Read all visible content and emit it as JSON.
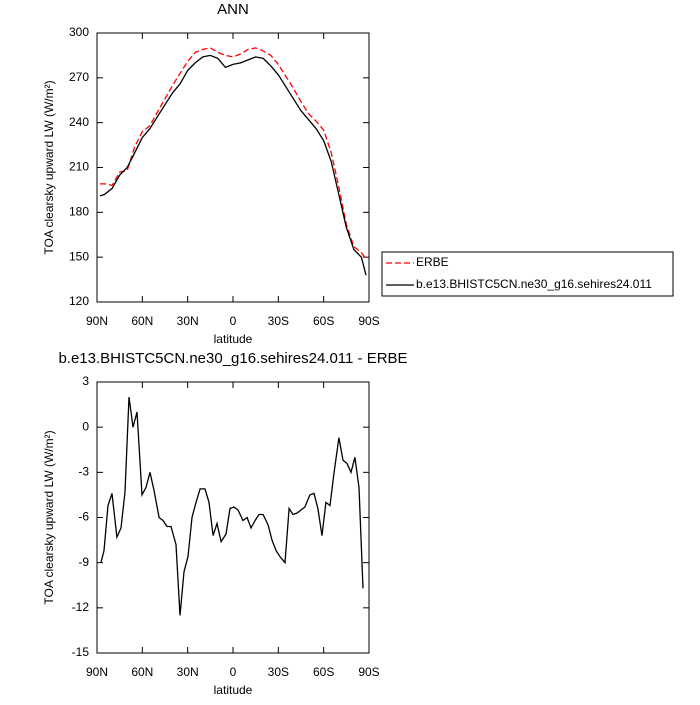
{
  "chart_data": [
    {
      "type": "line",
      "title": "ANN",
      "x_label": "latitude",
      "y_label": "TOA clearsky upward LW (W/m²)",
      "x": [
        88,
        85,
        80,
        75,
        70,
        65,
        60,
        55,
        50,
        45,
        40,
        35,
        30,
        25,
        20,
        15,
        10,
        5,
        0,
        -5,
        -10,
        -15,
        -20,
        -25,
        -30,
        -35,
        -40,
        -45,
        -50,
        -55,
        -60,
        -65,
        -70,
        -75,
        -80,
        -85,
        -88
      ],
      "xlim": [
        90,
        -90
      ],
      "xticks": [
        {
          "value": 90,
          "label": "90N"
        },
        {
          "value": 60,
          "label": "60N"
        },
        {
          "value": 30,
          "label": "30N"
        },
        0,
        {
          "value": -30,
          "label": "30S"
        },
        {
          "value": -60,
          "label": "60S"
        },
        {
          "value": -90,
          "label": "90S"
        }
      ],
      "ylim": [
        120,
        300
      ],
      "yticks": [
        120,
        150,
        180,
        210,
        240,
        270,
        300
      ],
      "legend": "right",
      "series": [
        {
          "name": "ERBE",
          "color": "#ff0000",
          "dashed": true,
          "values": [
            199,
            199,
            198,
            207,
            208,
            224,
            234,
            238,
            247,
            256,
            265,
            273,
            281,
            287,
            289,
            290,
            287,
            285,
            284,
            286,
            289,
            290,
            288,
            285,
            279,
            271,
            263,
            254,
            246,
            241,
            235,
            220,
            197,
            172,
            157,
            153,
            149
          ]
        },
        {
          "name": "b.e13.BHISTC5CN.ne30_g16.sehires24.011",
          "color": "#000000",
          "dashed": false,
          "values": [
            191,
            192,
            196,
            205,
            210,
            220,
            230,
            236,
            244,
            252,
            260,
            266,
            275,
            280,
            284,
            285,
            283,
            277,
            279,
            280,
            282,
            284,
            283,
            278,
            272,
            264,
            256,
            248,
            242,
            236,
            228,
            214,
            192,
            170,
            155,
            150,
            138
          ]
        }
      ]
    },
    {
      "type": "line",
      "title": "b.e13.BHISTC5CN.ne30_g16.sehires24.011 - ERBE",
      "x_label": "latitude",
      "y_label": "TOA clearsky upward LW (W/m²)",
      "x": [
        87.4,
        85.4,
        82.7,
        80.1,
        76.8,
        74.1,
        71.5,
        68.8,
        66.2,
        63.5,
        60.2,
        57.6,
        54.9,
        52.3,
        48.9,
        46.3,
        43.7,
        41.0,
        37.7,
        35.1,
        32.4,
        29.8,
        27.1,
        24.5,
        21.8,
        18.5,
        15.9,
        13.2,
        10.6,
        7.9,
        4.6,
        2.0,
        -0.6,
        -3.3,
        -6.6,
        -9.3,
        -11.9,
        -14.6,
        -17.2,
        -19.9,
        -23.2,
        -25.8,
        -28.5,
        -31.1,
        -34.4,
        -37.1,
        -39.7,
        -42.4,
        -45.0,
        -47.6,
        -50.9,
        -53.6,
        -56.2,
        -58.9,
        -61.5,
        -64.2,
        -66.8,
        -70.1,
        -72.8,
        -75.4,
        -78.1,
        -80.7,
        -83.4,
        -86.0
      ],
      "xlim": [
        90,
        -90
      ],
      "xticks": [
        {
          "value": 90,
          "label": "90N"
        },
        {
          "value": 60,
          "label": "60N"
        },
        {
          "value": 30,
          "label": "30N"
        },
        0,
        {
          "value": -30,
          "label": "30S"
        },
        {
          "value": -60,
          "label": "60S"
        },
        {
          "value": -90,
          "label": "90S"
        }
      ],
      "ylim": [
        -15,
        3
      ],
      "yticks": [
        -15,
        -12,
        -9,
        -6,
        -3,
        0,
        3
      ],
      "color": "#000000",
      "values": [
        -9.0,
        -8.2,
        -5.2,
        -4.4,
        -7.3,
        -6.7,
        -4.3,
        2.0,
        0.0,
        1.0,
        -4.5,
        -4.0,
        -3.0,
        -4.2,
        -6.0,
        -6.2,
        -6.6,
        -6.6,
        -7.8,
        -12.5,
        -9.6,
        -8.6,
        -6.0,
        -5.0,
        -4.1,
        -4.1,
        -5.0,
        -7.2,
        -6.4,
        -7.6,
        -7.1,
        -5.4,
        -5.3,
        -5.5,
        -6.2,
        -6.0,
        -6.7,
        -6.2,
        -5.8,
        -5.8,
        -6.5,
        -7.5,
        -8.2,
        -8.6,
        -9.0,
        -5.4,
        -5.8,
        -5.7,
        -5.5,
        -5.3,
        -4.5,
        -4.4,
        -5.4,
        -7.2,
        -5.0,
        -5.2,
        -3.1,
        -0.7,
        -2.2,
        -2.4,
        -3.0,
        -2.0,
        -4.0,
        -10.7
      ]
    }
  ]
}
